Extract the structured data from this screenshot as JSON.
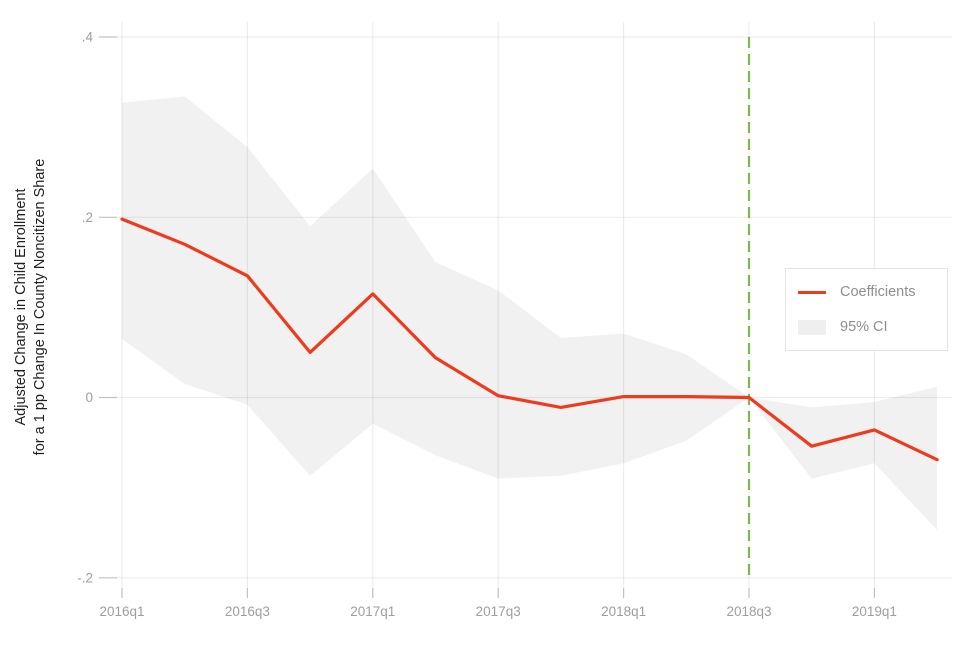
{
  "figure": {
    "y_axis_title_line1": "Adjusted Change in Child Enrollment",
    "y_axis_title_line2": "for a 1 pp Change In County Noncitizen Share"
  },
  "legend": {
    "items": [
      {
        "label": "Coefficients",
        "type": "line"
      },
      {
        "label": "95% CI",
        "type": "area"
      }
    ]
  },
  "colors": {
    "line": "#ee3a1d",
    "ci_fill": "#f1f1f1",
    "ci_legend_swatch": "#efefef",
    "ref_line": "#82b450",
    "grid": "rgba(0,0,0,0.07)",
    "tick": "#c2c2c2",
    "tick_label": "#9e9e9e",
    "axis_title": "#1f1f1f",
    "legend_text": "#8f8f8f",
    "legend_border": "#e4e4e4"
  },
  "chart_data": {
    "type": "line",
    "title": "",
    "xlabel": "",
    "ylabel": "Adjusted Change in Child Enrollment for a 1 pp Change In County Noncitizen Share",
    "grid": true,
    "legend_position": "right-middle",
    "ylim": [
      -0.211,
      0.417
    ],
    "x_categories": [
      "2016q1",
      "2016q2",
      "2016q3",
      "2016q4",
      "2017q1",
      "2017q2",
      "2017q3",
      "2017q4",
      "2018q1",
      "2018q2",
      "2018q3",
      "2018q4",
      "2019q1",
      "2019q2"
    ],
    "x_tick_labels": [
      "2016q1",
      "2016q3",
      "2017q1",
      "2017q3",
      "2018q1",
      "2018q3",
      "2019q1"
    ],
    "y_ticks": [
      {
        "label": ".4",
        "value": 0.4
      },
      {
        "label": ".2",
        "value": 0.2
      },
      {
        "label": "0",
        "value": 0.0
      },
      {
        "label": "-.2",
        "value": -0.2
      }
    ],
    "series": [
      {
        "name": "Coefficients",
        "values": [
          0.198,
          0.17,
          0.135,
          0.05,
          0.115,
          0.044,
          0.002,
          -0.011,
          0.001,
          0.001,
          0.0,
          -0.054,
          -0.036,
          -0.069
        ]
      }
    ],
    "ci": {
      "name": "95% CI",
      "upper": [
        0.327,
        0.334,
        0.278,
        0.19,
        0.254,
        0.15,
        0.119,
        0.066,
        0.071,
        0.048,
        0.0,
        -0.011,
        -0.005,
        0.012
      ],
      "lower": [
        0.065,
        0.015,
        -0.008,
        -0.087,
        -0.029,
        -0.064,
        -0.09,
        -0.087,
        -0.073,
        -0.048,
        0.0,
        -0.09,
        -0.073,
        -0.147
      ]
    },
    "reference_line": {
      "x": "2018q3",
      "style": "dashed"
    }
  }
}
